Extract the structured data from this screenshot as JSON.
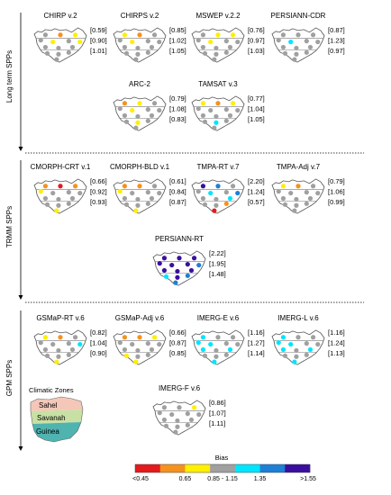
{
  "groups": [
    {
      "label": "Long term SPPs"
    },
    {
      "label": "TRMM SPPs"
    },
    {
      "label": "GPM SPPs"
    }
  ],
  "panels": [
    {
      "title": "CHIRP v.2",
      "ratios": [
        "[0.59]",
        "[0.90]",
        "[1.01]"
      ],
      "stations": [
        "g",
        "o",
        "y",
        "g",
        "y",
        "g",
        "y",
        "g",
        "g",
        "g",
        "g",
        "g",
        "g",
        "g"
      ]
    },
    {
      "title": "CHIRPS v.2",
      "ratios": [
        "[0.85]",
        "[1.02]",
        "[1.05]"
      ],
      "stations": [
        "y",
        "o",
        "g",
        "g",
        "y",
        "g",
        "g",
        "g",
        "g",
        "g",
        "g",
        "g",
        "g",
        "g"
      ]
    },
    {
      "title": "MSWEP v.2.2",
      "ratios": [
        "[0.76]",
        "[0.97]",
        "[1.03]"
      ],
      "stations": [
        "g",
        "y",
        "y",
        "g",
        "y",
        "g",
        "g",
        "g",
        "g",
        "g",
        "g",
        "g",
        "g",
        "g"
      ]
    },
    {
      "title": "PERSIANN-CDR",
      "ratios": [
        "[0.87]",
        "[1.23]",
        "[0.97]"
      ],
      "stations": [
        "g",
        "g",
        "g",
        "g",
        "c",
        "g",
        "g",
        "g",
        "g",
        "g",
        "g",
        "g",
        "g",
        "g"
      ]
    },
    {
      "title": "ARC-2",
      "ratios": [
        "[0.79]",
        "[1.08]",
        "[0.83]"
      ],
      "stations": [
        "o",
        "y",
        "g",
        "g",
        "y",
        "g",
        "g",
        "g",
        "g",
        "g",
        "g",
        "y",
        "g",
        "g"
      ]
    },
    {
      "title": "TAMSAT v.3",
      "ratios": [
        "[0.77]",
        "[1.04]",
        "[1.05]"
      ],
      "stations": [
        "y",
        "o",
        "y",
        "g",
        "g",
        "g",
        "g",
        "g",
        "g",
        "g",
        "g",
        "c",
        "g",
        "g"
      ]
    },
    {
      "title": "CMORPH-CRT v.1",
      "ratios": [
        "[0.66]",
        "[0.92]",
        "[0.93]"
      ],
      "stations": [
        "o",
        "r",
        "o",
        "y",
        "g",
        "g",
        "g",
        "g",
        "g",
        "g",
        "g",
        "g",
        "g",
        "y"
      ]
    },
    {
      "title": "CMORPH-BLD v.1",
      "ratios": [
        "[0.61]",
        "[0.84]",
        "[0.87]"
      ],
      "stations": [
        "o",
        "o",
        "g",
        "y",
        "g",
        "g",
        "g",
        "g",
        "g",
        "g",
        "g",
        "g",
        "g",
        "y"
      ]
    },
    {
      "title": "TMPA-RT v.7",
      "ratios": [
        "[2.20]",
        "[1.24]",
        "[0.57]"
      ],
      "stations": [
        "n",
        "b",
        "g",
        "g",
        "c",
        "g",
        "b",
        "g",
        "g",
        "c",
        "g",
        "g",
        "o",
        "r"
      ]
    },
    {
      "title": "TMPA-Adj v.7",
      "ratios": [
        "[0.79]",
        "[1.06]",
        "[0.99]"
      ],
      "stations": [
        "y",
        "o",
        "g",
        "g",
        "g",
        "g",
        "g",
        "g",
        "g",
        "g",
        "g",
        "g",
        "g",
        "g"
      ]
    },
    {
      "title": "PERSIANN-RT",
      "ratios": [
        "[2.22]",
        "[1.95]",
        "[1.48]"
      ],
      "stations": [
        "n",
        "n",
        "n",
        "n",
        "n",
        "n",
        "b",
        "n",
        "n",
        "n",
        "c",
        "n",
        "b",
        "b"
      ]
    },
    {
      "title": "GSMaP-RT v.6",
      "ratios": [
        "[0.82]",
        "[1.04]",
        "[0.90]"
      ],
      "stations": [
        "y",
        "o",
        "g",
        "g",
        "g",
        "g",
        "c",
        "g",
        "g",
        "g",
        "g",
        "g",
        "g",
        "y"
      ]
    },
    {
      "title": "GSMaP-Adj v.6",
      "ratios": [
        "[0.66]",
        "[0.87]",
        "[0.85]"
      ],
      "stations": [
        "o",
        "o",
        "y",
        "g",
        "g",
        "g",
        "g",
        "g",
        "g",
        "g",
        "y",
        "g",
        "g",
        "y"
      ]
    },
    {
      "title": "IMERG-E v.6",
      "ratios": [
        "[1.16]",
        "[1.27]",
        "[1.14]"
      ],
      "stations": [
        "c",
        "g",
        "g",
        "c",
        "c",
        "g",
        "g",
        "c",
        "g",
        "c",
        "g",
        "g",
        "g",
        "c"
      ]
    },
    {
      "title": "IMERG-L v.6",
      "ratios": [
        "[1.16]",
        "[1.24]",
        "[1.13]"
      ],
      "stations": [
        "c",
        "g",
        "g",
        "c",
        "c",
        "g",
        "g",
        "c",
        "g",
        "c",
        "g",
        "g",
        "g",
        "c"
      ]
    },
    {
      "title": "IMERG-F v.6",
      "ratios": [
        "[0.86]",
        "[1.07]",
        "[1.11]"
      ],
      "stations": [
        "g",
        "g",
        "y",
        "g",
        "g",
        "g",
        "g",
        "g",
        "g",
        "g",
        "g",
        "g",
        "g",
        "g"
      ]
    }
  ],
  "zones": {
    "title": "Climatic Zones",
    "items": [
      {
        "label": "Sahel",
        "color": "#f4c7b8"
      },
      {
        "label": "Savanah",
        "color": "#c8e0a4"
      },
      {
        "label": "Guinea",
        "color": "#4fb3b0"
      }
    ]
  },
  "legend": {
    "title": "Bias",
    "ticks": [
      "<0.45",
      "0.65",
      "0.85 - 1.15",
      "1.35",
      ">1.55"
    ],
    "classes": [
      {
        "key": "r",
        "color": "#e41a1c"
      },
      {
        "key": "o",
        "color": "#f5921e"
      },
      {
        "key": "y",
        "color": "#ffef00"
      },
      {
        "key": "g",
        "color": "#a0a0a0"
      },
      {
        "key": "c",
        "color": "#00e5ff"
      },
      {
        "key": "b",
        "color": "#1e7fd6"
      },
      {
        "key": "n",
        "color": "#3a0f9e"
      }
    ]
  }
}
